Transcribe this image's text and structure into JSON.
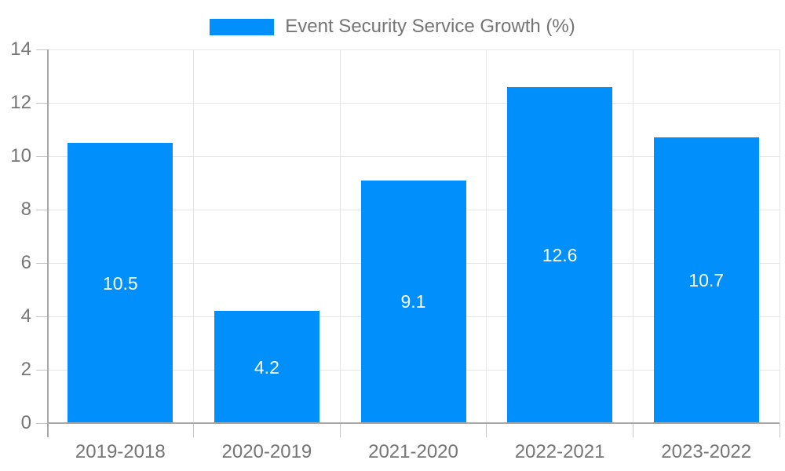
{
  "chart_data": {
    "type": "bar",
    "title": "Event Security Service Growth (%)",
    "categories": [
      "2019-2018",
      "2020-2019",
      "2021-2020",
      "2022-2021",
      "2023-2022"
    ],
    "values": [
      10.5,
      4.2,
      9.1,
      12.6,
      10.7
    ],
    "xlabel": "",
    "ylabel": "",
    "ylim": [
      0,
      14
    ],
    "yticks": [
      0,
      2,
      4,
      6,
      8,
      10,
      12,
      14
    ],
    "grid": true,
    "legend_position": "top",
    "colors": {
      "bar": "#008FFB",
      "value_label": "#ffffff",
      "axis_text": "#757575",
      "gridline": "#e6e6e6",
      "axis_line": "#a8a8a8",
      "tick": "#c4c4c4",
      "background": "#ffffff"
    }
  }
}
